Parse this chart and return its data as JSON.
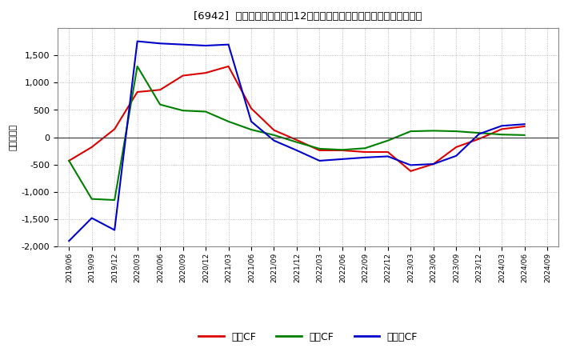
{
  "title": "[6942]  キャッシュフローの12か月移動合計の対前年同期増減額の推移",
  "ylabel": "（百万円）",
  "background_color": "#ffffff",
  "plot_bg_color": "#ffffff",
  "grid_color": "#aaaaaa",
  "ylim": [
    -2000,
    2000
  ],
  "yticks": [
    -2000,
    -1500,
    -1000,
    -500,
    0,
    500,
    1000,
    1500
  ],
  "x_labels": [
    "2019/06",
    "2019/09",
    "2019/12",
    "2020/03",
    "2020/06",
    "2020/09",
    "2020/12",
    "2021/03",
    "2021/06",
    "2021/09",
    "2021/12",
    "2022/03",
    "2022/06",
    "2022/09",
    "2022/12",
    "2023/03",
    "2023/06",
    "2023/09",
    "2023/12",
    "2024/03",
    "2024/06",
    "2024/09"
  ],
  "series": {
    "営業CF": {
      "color": "#dd0000",
      "values": [
        -430,
        -180,
        150,
        830,
        870,
        1130,
        1180,
        1300,
        530,
        130,
        -50,
        -240,
        -240,
        -270,
        -270,
        -620,
        -490,
        -180,
        -30,
        150,
        200,
        null
      ]
    },
    "投資CF": {
      "color": "#008000",
      "values": [
        -430,
        -1130,
        -1150,
        1300,
        600,
        490,
        470,
        290,
        140,
        40,
        -90,
        -210,
        -230,
        -200,
        -60,
        110,
        120,
        110,
        80,
        50,
        40,
        null
      ]
    },
    "フリーCF": {
      "color": "#0000cc",
      "values": [
        -1900,
        -1480,
        -1700,
        1760,
        1720,
        1700,
        1680,
        1700,
        290,
        -60,
        -240,
        -430,
        -400,
        -370,
        -350,
        -510,
        -490,
        -340,
        60,
        210,
        240,
        null
      ]
    }
  },
  "legend_labels": [
    "営業CF",
    "投資CF",
    "フリーCF"
  ],
  "legend_colors": [
    "#dd0000",
    "#008000",
    "#0000cc"
  ]
}
